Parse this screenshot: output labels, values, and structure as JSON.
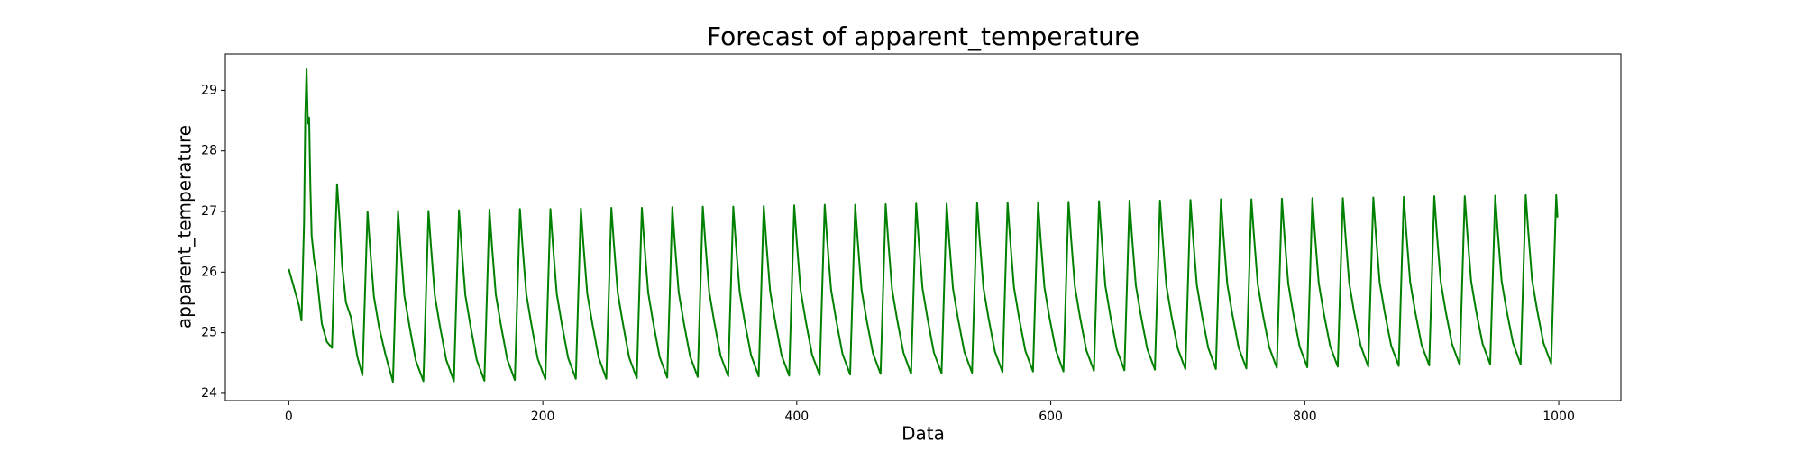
{
  "chart_data": {
    "type": "line",
    "title": "Forecast of apparent_temperature",
    "x_label": "Data",
    "y_label": "apparent_temperature",
    "color": "#008000",
    "xlim": [
      -49.95,
      1048.95
    ],
    "ylim": [
      23.88,
      29.6
    ],
    "xticks": [
      0,
      200,
      400,
      600,
      800,
      1000
    ],
    "yticks": [
      24,
      25,
      26,
      27,
      28,
      29
    ],
    "x": [
      0,
      4,
      8,
      10,
      12,
      13,
      14,
      15,
      16,
      17,
      18,
      20,
      22,
      26,
      30,
      34,
      36,
      38,
      40,
      42,
      45,
      49,
      54,
      58,
      62,
      64,
      67,
      71,
      76,
      82,
      86,
      88,
      91,
      95,
      100,
      106,
      110,
      112,
      115,
      119,
      124,
      130,
      134,
      136,
      139,
      143,
      148,
      154,
      158,
      160,
      163,
      167,
      172,
      178,
      182,
      184,
      187,
      191,
      196,
      202,
      206,
      208,
      211,
      215,
      220,
      226,
      230,
      232,
      235,
      239,
      244,
      250,
      254,
      256,
      259,
      263,
      268,
      274,
      278,
      280,
      283,
      287,
      292,
      298,
      302,
      304,
      307,
      311,
      316,
      322,
      326,
      328,
      331,
      335,
      340,
      346,
      350,
      352,
      355,
      359,
      364,
      370,
      374,
      376,
      379,
      383,
      388,
      394,
      398,
      400,
      403,
      407,
      412,
      418,
      422,
      424,
      427,
      431,
      436,
      442,
      446,
      448,
      451,
      455,
      460,
      466,
      470,
      472,
      475,
      479,
      484,
      490,
      494,
      496,
      499,
      503,
      508,
      514,
      518,
      520,
      523,
      527,
      532,
      538,
      542,
      544,
      547,
      551,
      556,
      562,
      566,
      568,
      571,
      575,
      580,
      586,
      590,
      592,
      595,
      599,
      604,
      610,
      614,
      616,
      619,
      623,
      628,
      634,
      638,
      640,
      643,
      647,
      652,
      658,
      662,
      664,
      667,
      671,
      676,
      682,
      686,
      688,
      691,
      695,
      700,
      706,
      710,
      712,
      715,
      719,
      724,
      730,
      734,
      736,
      739,
      743,
      748,
      754,
      758,
      760,
      763,
      767,
      772,
      778,
      782,
      784,
      787,
      791,
      796,
      802,
      806,
      808,
      811,
      815,
      820,
      826,
      830,
      832,
      835,
      839,
      844,
      850,
      854,
      856,
      859,
      863,
      868,
      874,
      878,
      880,
      883,
      887,
      892,
      898,
      902,
      904,
      907,
      911,
      916,
      922,
      926,
      928,
      931,
      935,
      940,
      946,
      950,
      952,
      955,
      959,
      964,
      970,
      974,
      976,
      979,
      983,
      988,
      994,
      998,
      999
    ],
    "values": [
      26.05,
      25.75,
      25.45,
      25.2,
      26.8,
      28.6,
      29.35,
      28.45,
      28.55,
      27.4,
      26.6,
      26.2,
      25.95,
      25.15,
      24.85,
      24.75,
      26.2,
      27.45,
      26.85,
      26.1,
      25.5,
      25.25,
      24.6,
      24.3,
      27.0,
      26.4,
      25.6,
      25.1,
      24.65,
      24.19,
      27.01,
      26.41,
      25.61,
      25.11,
      24.54,
      24.2,
      27.01,
      26.41,
      25.61,
      25.11,
      24.55,
      24.2,
      27.02,
      26.42,
      25.62,
      25.12,
      24.55,
      24.21,
      27.03,
      26.43,
      25.63,
      25.13,
      24.56,
      24.22,
      27.04,
      26.44,
      25.64,
      25.14,
      24.57,
      24.23,
      27.04,
      26.44,
      25.64,
      25.14,
      24.58,
      24.24,
      27.05,
      26.45,
      25.65,
      25.15,
      24.59,
      24.24,
      27.06,
      26.46,
      25.66,
      25.16,
      24.59,
      24.25,
      27.06,
      26.46,
      25.66,
      25.16,
      24.6,
      24.26,
      27.07,
      26.47,
      25.67,
      25.17,
      24.61,
      24.27,
      27.08,
      26.48,
      25.68,
      25.18,
      24.62,
      24.28,
      27.08,
      26.48,
      25.68,
      25.18,
      24.63,
      24.28,
      27.09,
      26.49,
      25.69,
      25.19,
      24.63,
      24.29,
      27.1,
      26.5,
      25.7,
      25.2,
      24.64,
      24.3,
      27.11,
      26.51,
      25.71,
      25.21,
      24.65,
      24.31,
      27.11,
      26.51,
      25.71,
      25.21,
      24.66,
      24.32,
      27.12,
      26.52,
      25.72,
      25.22,
      24.67,
      24.32,
      27.13,
      26.53,
      25.73,
      25.23,
      24.67,
      24.33,
      27.13,
      26.53,
      25.73,
      25.23,
      24.68,
      24.34,
      27.14,
      26.54,
      25.74,
      25.24,
      24.69,
      24.35,
      27.15,
      26.55,
      25.75,
      25.25,
      24.7,
      24.36,
      27.15,
      26.55,
      25.75,
      25.25,
      24.71,
      24.36,
      27.16,
      26.56,
      25.76,
      25.26,
      24.71,
      24.37,
      27.17,
      26.57,
      25.77,
      25.27,
      24.72,
      24.38,
      27.18,
      26.58,
      25.78,
      25.28,
      24.73,
      24.39,
      27.18,
      26.58,
      25.78,
      25.28,
      24.74,
      24.4,
      27.19,
      26.59,
      25.79,
      25.29,
      24.75,
      24.4,
      27.2,
      26.6,
      25.8,
      25.3,
      24.75,
      24.41,
      27.2,
      26.6,
      25.8,
      25.3,
      24.76,
      24.42,
      27.21,
      26.61,
      25.81,
      25.31,
      24.77,
      24.43,
      27.22,
      26.62,
      25.82,
      25.32,
      24.78,
      24.44,
      27.22,
      26.62,
      25.82,
      25.32,
      24.79,
      24.44,
      27.23,
      26.63,
      25.83,
      25.33,
      24.79,
      24.45,
      27.24,
      26.64,
      25.84,
      25.34,
      24.8,
      24.46,
      27.25,
      26.65,
      25.85,
      25.35,
      24.81,
      24.47,
      27.25,
      26.65,
      25.85,
      25.35,
      24.82,
      24.48,
      27.26,
      26.66,
      25.86,
      25.36,
      24.83,
      24.48,
      27.27,
      26.67,
      25.87,
      25.37,
      24.83,
      24.49,
      27.27,
      26.9
    ]
  }
}
